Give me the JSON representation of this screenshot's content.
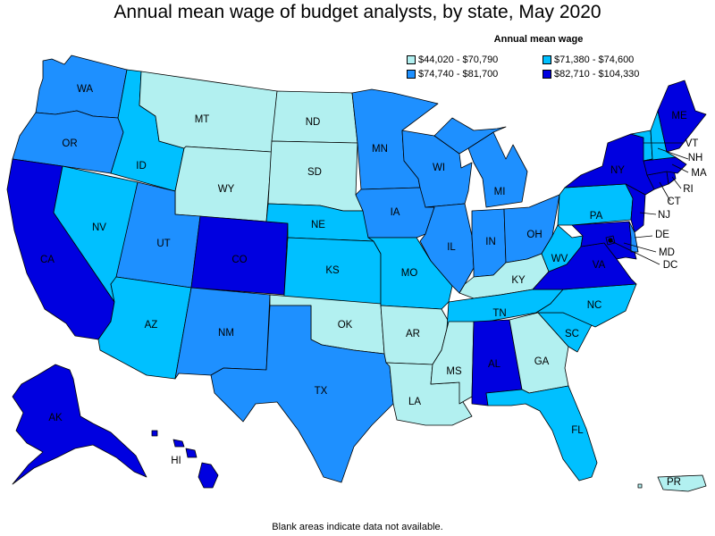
{
  "title": "Annual mean wage of budget analysts, by state, May 2020",
  "legend": {
    "title": "Annual mean wage",
    "bins": [
      {
        "label": "$44,020 - $70,790",
        "color": "#b2f0f0"
      },
      {
        "label": "$71,380 - $74,600",
        "color": "#00c0ff"
      },
      {
        "label": "$74,740 - $81,700",
        "color": "#1e90ff"
      },
      {
        "label": "$82,710 - $104,330",
        "color": "#0000e0"
      }
    ]
  },
  "footnote": "Blank areas indicate data not available.",
  "states": {
    "WA": {
      "label": "WA",
      "bin": 2
    },
    "OR": {
      "label": "OR",
      "bin": 2
    },
    "CA": {
      "label": "CA",
      "bin": 3
    },
    "NV": {
      "label": "NV",
      "bin": 1
    },
    "ID": {
      "label": "ID",
      "bin": 1
    },
    "MT": {
      "label": "MT",
      "bin": 0
    },
    "WY": {
      "label": "WY",
      "bin": 0
    },
    "UT": {
      "label": "UT",
      "bin": 2
    },
    "AZ": {
      "label": "AZ",
      "bin": 1
    },
    "CO": {
      "label": "CO",
      "bin": 3
    },
    "NM": {
      "label": "NM",
      "bin": 2
    },
    "ND": {
      "label": "ND",
      "bin": 0
    },
    "SD": {
      "label": "SD",
      "bin": 0
    },
    "NE": {
      "label": "NE",
      "bin": 1
    },
    "KS": {
      "label": "KS",
      "bin": 1
    },
    "OK": {
      "label": "OK",
      "bin": 0
    },
    "TX": {
      "label": "TX",
      "bin": 2
    },
    "MN": {
      "label": "MN",
      "bin": 2
    },
    "IA": {
      "label": "IA",
      "bin": 2
    },
    "MO": {
      "label": "MO",
      "bin": 1
    },
    "AR": {
      "label": "AR",
      "bin": 0
    },
    "LA": {
      "label": "LA",
      "bin": 0
    },
    "WI": {
      "label": "WI",
      "bin": 2
    },
    "IL": {
      "label": "IL",
      "bin": 2
    },
    "MI": {
      "label": "MI",
      "bin": 2
    },
    "IN": {
      "label": "IN",
      "bin": 2
    },
    "OH": {
      "label": "OH",
      "bin": 2
    },
    "KY": {
      "label": "KY",
      "bin": 0
    },
    "TN": {
      "label": "TN",
      "bin": 1
    },
    "MS": {
      "label": "MS",
      "bin": 0
    },
    "AL": {
      "label": "AL",
      "bin": 3
    },
    "GA": {
      "label": "GA",
      "bin": 0
    },
    "FL": {
      "label": "FL",
      "bin": 1
    },
    "SC": {
      "label": "SC",
      "bin": 1
    },
    "NC": {
      "label": "NC",
      "bin": 1
    },
    "VA": {
      "label": "VA",
      "bin": 3
    },
    "WV": {
      "label": "WV",
      "bin": 1
    },
    "PA": {
      "label": "PA",
      "bin": 1
    },
    "NY": {
      "label": "NY",
      "bin": 3
    },
    "VT": {
      "label": "VT",
      "bin": 1
    },
    "NH": {
      "label": "NH",
      "bin": 1
    },
    "ME": {
      "label": "ME",
      "bin": 3
    },
    "MA": {
      "label": "MA",
      "bin": 3
    },
    "RI": {
      "label": "RI",
      "bin": 3
    },
    "CT": {
      "label": "CT",
      "bin": 3
    },
    "NJ": {
      "label": "NJ",
      "bin": 3
    },
    "DE": {
      "label": "DE",
      "bin": 2
    },
    "MD": {
      "label": "MD",
      "bin": 3
    },
    "DC": {
      "label": "DC",
      "bin": 3
    },
    "AK": {
      "label": "AK",
      "bin": 3
    },
    "HI": {
      "label": "HI",
      "bin": 3
    },
    "PR": {
      "label": "PR",
      "bin": 0
    }
  }
}
